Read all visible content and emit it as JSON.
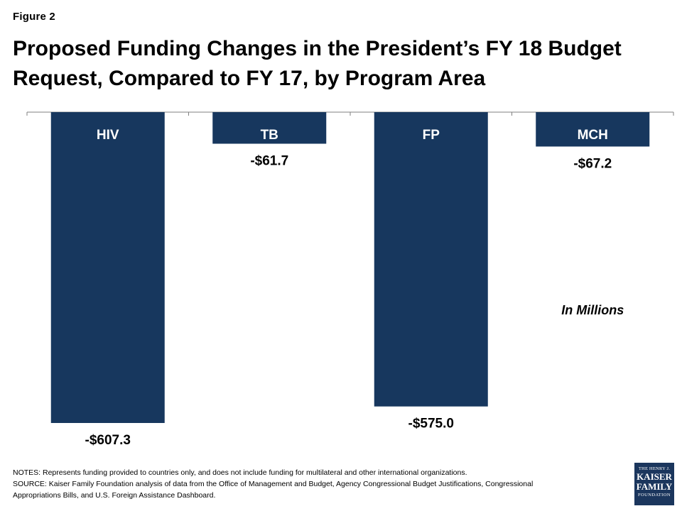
{
  "figure_label": "Figure 2",
  "title": "Proposed Funding Changes in the President’s FY 18 Budget Request, Compared to FY 17, by Program Area",
  "notes": {
    "line1": "NOTES:  Represents funding provided to countries only, and does not include funding for multilateral and other international organizations.",
    "line2": "SOURCE:  Kaiser Family Foundation analysis of data from the Office of Management and Budget,  Agency Congressional Budget Justifications, Congressional",
    "line3": "Appropriations Bills, and U.S. Foreign Assistance Dashboard."
  },
  "logo": {
    "line1": "THE HENRY J.",
    "line2": "KAISER",
    "line3": "FAMILY",
    "line4": "FOUNDATION"
  },
  "colors": {
    "bar": "#17375e",
    "bar_label": "#ffffff",
    "axis": "#7f7f7f"
  },
  "chart_data": {
    "type": "bar",
    "categories": [
      "HIV",
      "TB",
      "FP",
      "MCH"
    ],
    "values": [
      -607.3,
      -61.7,
      -575.0,
      -67.2
    ],
    "data_labels": [
      "-$607.3",
      "-$61.7",
      "-$575.0",
      "-$67.2"
    ],
    "annotation": "In Millions",
    "ylim": [
      -607.3,
      0
    ],
    "grid": false
  }
}
